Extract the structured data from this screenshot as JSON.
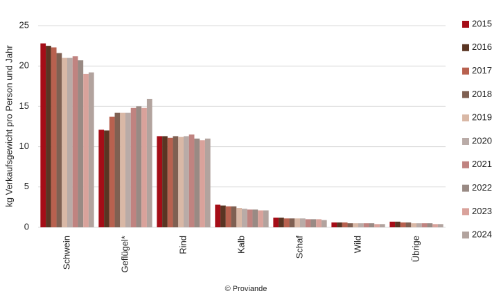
{
  "chart_data": {
    "type": "bar",
    "y_label": "kg Verkaufsgewicht pro Person und Jahr",
    "source": "© Proviande",
    "categories": [
      "Schwein",
      "Geflügel*",
      "Rind",
      "Kalb",
      "Schaf",
      "Wild",
      "Übrige"
    ],
    "series": [
      {
        "name": "2015",
        "color": "#a50d17",
        "values": [
          22.8,
          12.1,
          11.3,
          2.8,
          1.2,
          0.6,
          0.7
        ]
      },
      {
        "name": "2016",
        "color": "#5a3523",
        "values": [
          22.5,
          12.0,
          11.3,
          2.7,
          1.2,
          0.6,
          0.7
        ]
      },
      {
        "name": "2017",
        "color": "#b8614f",
        "values": [
          22.3,
          13.7,
          11.1,
          2.6,
          1.1,
          0.6,
          0.6
        ]
      },
      {
        "name": "2018",
        "color": "#7f6052",
        "values": [
          21.6,
          14.2,
          11.3,
          2.6,
          1.1,
          0.5,
          0.6
        ]
      },
      {
        "name": "2019",
        "color": "#d9b8a6",
        "values": [
          21.0,
          14.2,
          11.2,
          2.4,
          1.1,
          0.5,
          0.5
        ]
      },
      {
        "name": "2020",
        "color": "#b9aba7",
        "values": [
          21.0,
          14.2,
          11.3,
          2.3,
          1.1,
          0.5,
          0.5
        ]
      },
      {
        "name": "2021",
        "color": "#c08380",
        "values": [
          21.2,
          14.8,
          11.5,
          2.2,
          1.0,
          0.5,
          0.5
        ]
      },
      {
        "name": "2022",
        "color": "#998a84",
        "values": [
          20.7,
          15.0,
          11.0,
          2.2,
          1.0,
          0.5,
          0.5
        ]
      },
      {
        "name": "2023",
        "color": "#d9a29b",
        "values": [
          19.0,
          14.8,
          10.8,
          2.1,
          1.0,
          0.4,
          0.4
        ]
      },
      {
        "name": "2024",
        "color": "#b2a39e",
        "values": [
          19.2,
          15.9,
          11.0,
          2.1,
          0.9,
          0.4,
          0.4
        ]
      }
    ],
    "ylim": [
      0,
      25
    ],
    "yticks": [
      0,
      5,
      10,
      15,
      20,
      25
    ],
    "grid": true,
    "legend": "right"
  }
}
